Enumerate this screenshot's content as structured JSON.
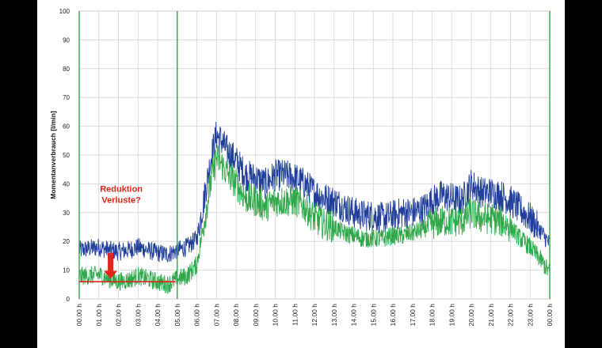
{
  "chart_data": {
    "type": "line",
    "title": "",
    "xlabel": "",
    "ylabel": "Momentanverbrauch [l/min]",
    "ylim": [
      0,
      100
    ],
    "xlim": [
      0,
      24
    ],
    "yticks": [
      0,
      10,
      20,
      30,
      40,
      50,
      60,
      70,
      80,
      90,
      100
    ],
    "xtick_labels": [
      "00.00 h",
      "01.00 h",
      "02.00 h",
      "03.00 h",
      "04.00 h",
      "05.00 h",
      "06.00 h",
      "07.00 h",
      "08.00 h",
      "09.00 h",
      "10.00 h",
      "11.00 h",
      "12.00 h",
      "13.00 h",
      "14.00 h",
      "15.00 h",
      "16.00 h",
      "17.00 h",
      "18.00 h",
      "19.00 h",
      "20.00 h",
      "21.00 h",
      "22.00 h",
      "23.00 h",
      "00.00 h"
    ],
    "grid": true,
    "series": [
      {
        "name": "Momentanverbrauch (blau)",
        "color": "#1f3f9a",
        "x": [
          0,
          0.5,
          1,
          1.5,
          2,
          2.5,
          3,
          3.5,
          4,
          4.5,
          5,
          5.5,
          6,
          6.25,
          6.5,
          6.75,
          7,
          7.25,
          7.5,
          8,
          8.5,
          9,
          9.5,
          10,
          10.5,
          11,
          11.5,
          12,
          12.5,
          13,
          13.5,
          14,
          14.5,
          15,
          15.5,
          16,
          16.5,
          17,
          17.5,
          18,
          18.5,
          19,
          19.5,
          20,
          20.5,
          21,
          21.5,
          22,
          22.5,
          23,
          23.5,
          24
        ],
        "values": [
          17,
          17.5,
          18,
          17,
          16.5,
          17,
          18,
          17,
          16,
          15.5,
          17,
          18,
          21,
          30,
          40,
          50,
          57,
          55,
          52,
          48,
          43,
          42,
          40,
          43,
          43,
          42,
          40,
          37,
          35,
          34,
          32,
          30,
          29,
          29,
          28,
          29,
          30,
          30,
          31,
          34,
          36,
          35,
          34,
          40,
          37,
          37,
          36,
          34,
          31,
          28,
          24,
          19
        ]
      },
      {
        "name": "Momentanverbrauch (grün)",
        "color": "#2fa84a",
        "x": [
          0,
          0.5,
          1,
          1.5,
          2,
          2.5,
          3,
          3.5,
          4,
          4.5,
          5,
          5.5,
          6,
          6.25,
          6.5,
          6.75,
          7,
          7.25,
          7.5,
          8,
          8.5,
          9,
          9.5,
          10,
          10.5,
          11,
          11.5,
          12,
          12.5,
          13,
          13.5,
          14,
          14.5,
          15,
          15.5,
          16,
          16.5,
          17,
          17.5,
          18,
          18.5,
          19,
          19.5,
          20,
          20.5,
          21,
          21.5,
          22,
          22.5,
          23,
          23.5,
          24
        ],
        "values": [
          8,
          8,
          8.5,
          7,
          6,
          6.5,
          8,
          7,
          6,
          5,
          7,
          8,
          12,
          22,
          32,
          42,
          49,
          47,
          44,
          40,
          35,
          34,
          32,
          34,
          34,
          34,
          32,
          28,
          26,
          25,
          23,
          22,
          21,
          21,
          21,
          22,
          22,
          23,
          24,
          26,
          27,
          27,
          27,
          30,
          28,
          28,
          27,
          25,
          21,
          18,
          14,
          9
        ]
      }
    ],
    "annotations": [
      {
        "text_lines": [
          "Reduktion",
          "Verluste?"
        ],
        "color": "#e0251b",
        "x": 1.5,
        "y": 35
      }
    ],
    "reference_line": {
      "y": 6,
      "x_range": [
        0,
        4.9
      ],
      "color": "#e0251b"
    },
    "arrow": {
      "x": 1.6,
      "y_from": 16,
      "y_to": 7,
      "color": "#e0251b"
    },
    "vertical_markers": [
      0,
      5,
      24
    ]
  }
}
